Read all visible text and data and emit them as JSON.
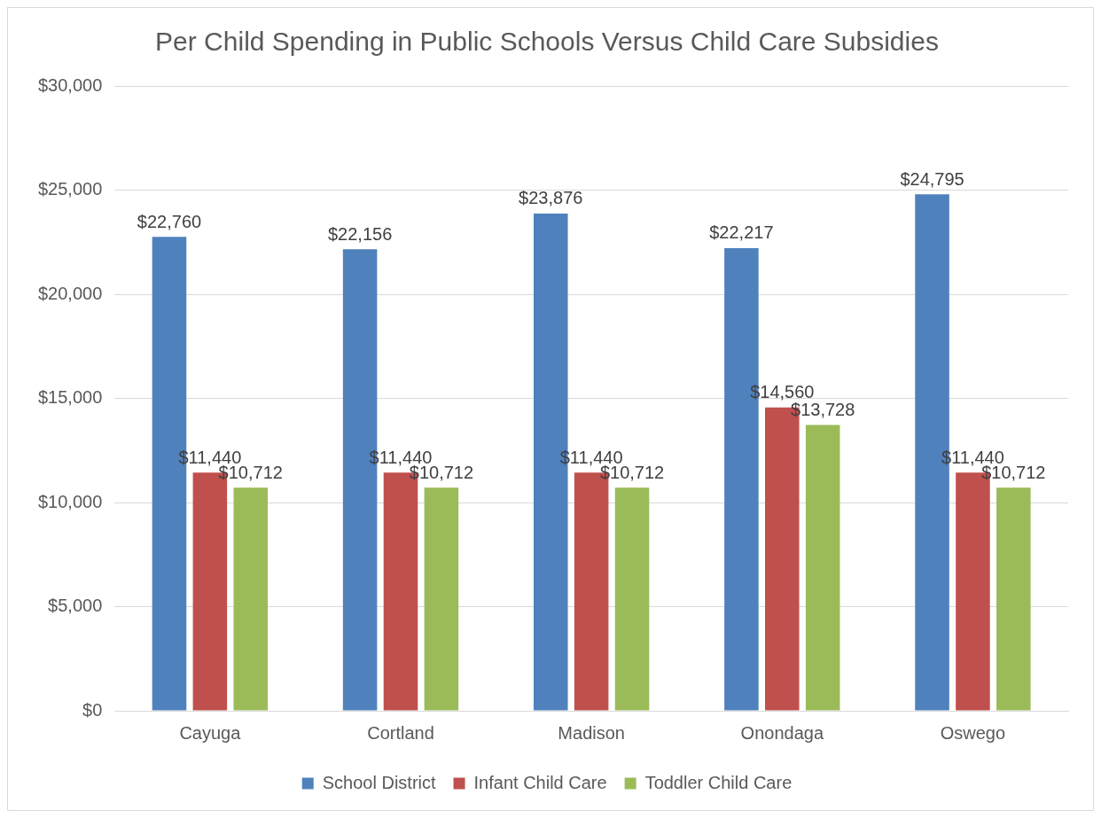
{
  "chart_data": {
    "type": "bar",
    "title": "Per Child Spending in Public Schools Versus Child Care Subsidies",
    "categories": [
      "Cayuga",
      "Cortland",
      "Madison",
      "Onondaga",
      "Oswego"
    ],
    "series": [
      {
        "name": "School District",
        "color": "#4f81bd",
        "values": [
          22760,
          22156,
          23876,
          22217,
          24795
        ],
        "value_labels": [
          "$22,760",
          "$22,156",
          "$23,876",
          "$22,217",
          "$24,795"
        ]
      },
      {
        "name": "Infant Child Care",
        "color": "#c0504d",
        "values": [
          11440,
          11440,
          11440,
          14560,
          11440
        ],
        "value_labels": [
          "$11,440",
          "$11,440",
          "$11,440",
          "$14,560",
          "$11,440"
        ]
      },
      {
        "name": "Toddler Child Care",
        "color": "#9bbb59",
        "values": [
          10712,
          10712,
          10712,
          13728,
          10712
        ],
        "value_labels": [
          "$10,712",
          "$10,712",
          "$10,712",
          "$13,728",
          "$10,712"
        ]
      }
    ],
    "ylim": [
      0,
      30000
    ],
    "yticks": [
      {
        "value": 0,
        "label": "$0"
      },
      {
        "value": 5000,
        "label": "$5,000"
      },
      {
        "value": 10000,
        "label": "$10,000"
      },
      {
        "value": 15000,
        "label": "$15,000"
      },
      {
        "value": 20000,
        "label": "$20,000"
      },
      {
        "value": 25000,
        "label": "$25,000"
      },
      {
        "value": 30000,
        "label": "$30,000"
      }
    ],
    "grid": "y",
    "legend": "bottom"
  }
}
